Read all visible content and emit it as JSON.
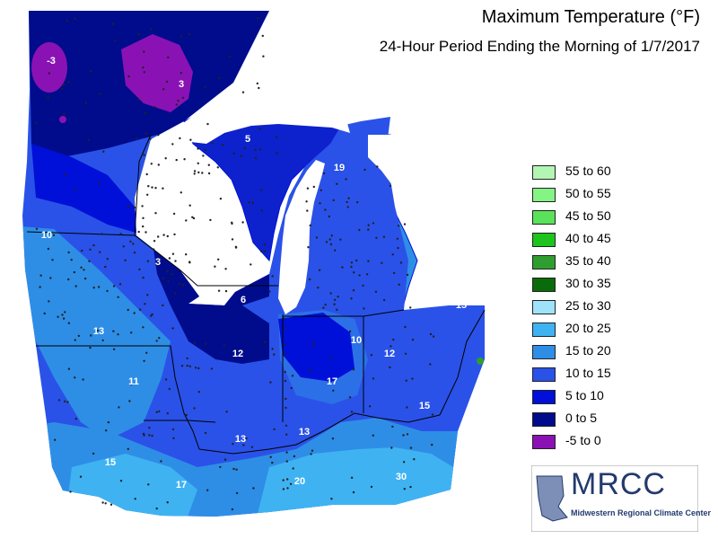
{
  "title": "Maximum Temperature (°F)",
  "subtitle": "24-Hour Period Ending the Morning of 1/7/2017",
  "legend": [
    {
      "label": "55 to 60",
      "color": "#b3f5b3"
    },
    {
      "label": "50 to 55",
      "color": "#84f584"
    },
    {
      "label": "45 to 50",
      "color": "#5be25b"
    },
    {
      "label": "40 to 45",
      "color": "#1cc41c"
    },
    {
      "label": "35 to 40",
      "color": "#2f9e2f"
    },
    {
      "label": "30 to 35",
      "color": "#0a6b0a"
    },
    {
      "label": "25 to 30",
      "color": "#9fe3fb"
    },
    {
      "label": "20 to 25",
      "color": "#3fb3f2"
    },
    {
      "label": "15 to 20",
      "color": "#2e8ee6"
    },
    {
      "label": "10 to 15",
      "color": "#2a52e8"
    },
    {
      "label": "5 to 10",
      "color": "#0010d8"
    },
    {
      "label": "0 to 5",
      "color": "#000c8c"
    },
    {
      "label": "-5 to 0",
      "color": "#8a12b4"
    }
  ],
  "value_labels": [
    "-3",
    "3",
    "5",
    "19",
    "10",
    "3",
    "6",
    "15",
    "13",
    "10",
    "12",
    "12",
    "11",
    "17",
    "15",
    "13",
    "13",
    "15",
    "17",
    "20",
    "30"
  ],
  "logo": {
    "name": "MRCC",
    "subtitle": "Midwestern Regional Climate Center"
  }
}
